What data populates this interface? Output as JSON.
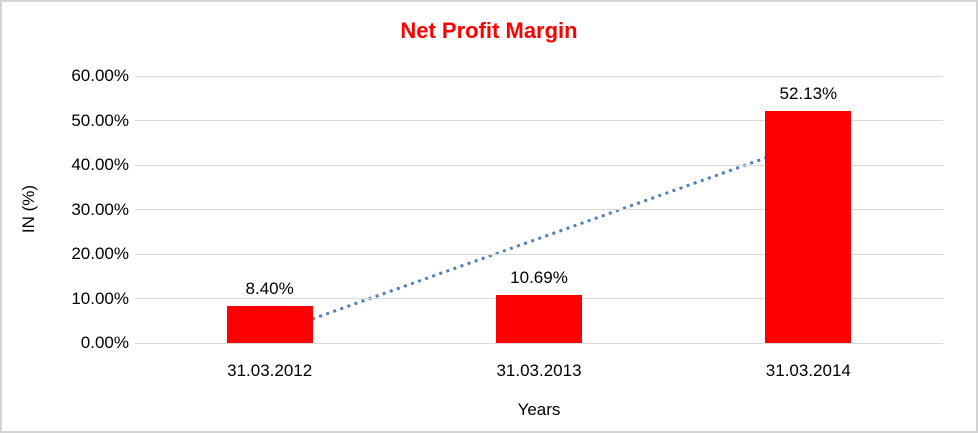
{
  "window": {
    "background_color": "#ffffff",
    "frame_border_color": "#d3d3d3"
  },
  "chart_data": {
    "type": "bar",
    "title": "Net Profit Margin",
    "xlabel": "Years",
    "ylabel": "IN (%)",
    "categories": [
      "31.03.2012",
      "31.03.2013",
      "31.03.2014"
    ],
    "values": [
      8.4,
      10.69,
      52.13
    ],
    "data_labels": [
      "8.40%",
      "10.69%",
      "52.13%"
    ],
    "y_ticks": [
      "0.00%",
      "10.00%",
      "20.00%",
      "30.00%",
      "40.00%",
      "50.00%",
      "60.00%"
    ],
    "y_tick_step": 10,
    "ylim": [
      0,
      60
    ],
    "grid": true,
    "legend": "none",
    "bar_color": "#ff0000",
    "title_color": "#ff0000",
    "gridline_color": "#d9d9d9",
    "trendline": {
      "type": "linear",
      "style": "dotted",
      "color": "#4f81bd",
      "start_percent": 2.0,
      "end_percent": 45.0
    }
  }
}
